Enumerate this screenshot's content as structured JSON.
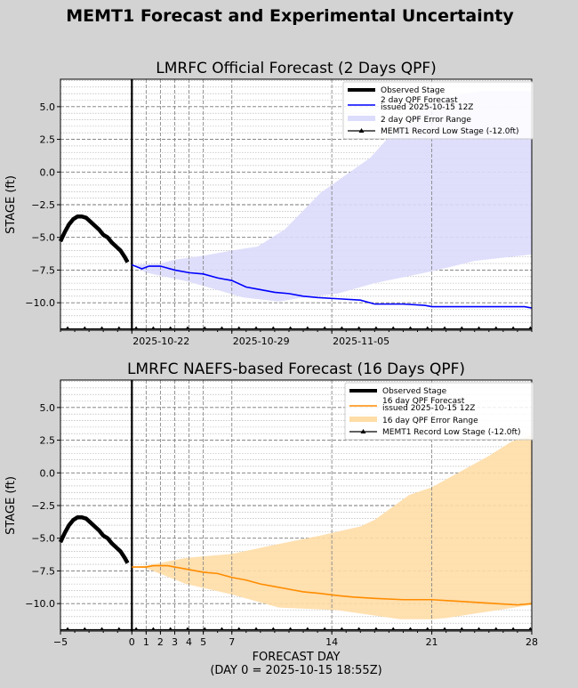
{
  "figure_title": "MEMT1 Forecast and Experimental Uncertainty",
  "colors": {
    "background": "#d3d3d3",
    "observed": "#000000",
    "official_line": "#0000ff",
    "official_band": "#dcdcfc",
    "naefs_line": "#ff8c00",
    "naefs_band": "#ffdda6"
  },
  "chart_data": [
    {
      "type": "line",
      "title": "LMRFC Official Forecast (2 Days QPF)",
      "ylabel": "STAGE (ft)",
      "xlabel": "",
      "xlim": [
        -5,
        28
      ],
      "ylim": [
        -12.1,
        7.1
      ],
      "yticks": [
        5.0,
        2.5,
        0.0,
        -2.5,
        -5.0,
        -7.5,
        -10.0
      ],
      "ytick_labels": [
        "5.0",
        "2.5",
        "0.0",
        "−2.5",
        "−5.0",
        "−7.5",
        "−10.0"
      ],
      "xtick_labels": [
        {
          "day": 0,
          "label": "2025-10-22"
        },
        {
          "day": 7,
          "label": "2025-10-29"
        },
        {
          "day": 14,
          "label": "2025-11-05"
        }
      ],
      "vlines": [
        1,
        2,
        3,
        4,
        5,
        7,
        14,
        21
      ],
      "grid": true,
      "legend_position": "top-right",
      "legend": [
        "Observed Stage",
        "2 day QPF Forecast",
        "issued 2025-10-15 12Z",
        "2 day QPF Error Range",
        "MEMT1 Record Low Stage (-12.0ft)"
      ],
      "record_low": -12.0,
      "observed": {
        "x": [
          -5,
          -4.7,
          -4.4,
          -4.1,
          -3.8,
          -3.5,
          -3.2,
          -2.9,
          -2.6,
          -2.3,
          -2.0,
          -1.7,
          -1.4,
          -1.1,
          -0.8,
          -0.5,
          -0.3
        ],
        "y": [
          -5.3,
          -4.6,
          -4.0,
          -3.6,
          -3.4,
          -3.4,
          -3.5,
          -3.8,
          -4.1,
          -4.4,
          -4.8,
          -5.0,
          -5.4,
          -5.7,
          -6.0,
          -6.5,
          -6.9
        ]
      },
      "forecast": {
        "x": [
          0,
          0.7,
          1.2,
          2,
          3,
          4,
          5,
          6,
          7,
          8,
          9,
          10,
          11,
          12,
          13,
          14.5,
          16,
          17,
          19,
          20.5,
          21,
          27.5,
          28
        ],
        "y": [
          -7.1,
          -7.4,
          -7.2,
          -7.2,
          -7.5,
          -7.7,
          -7.8,
          -8.1,
          -8.3,
          -8.8,
          -9.0,
          -9.2,
          -9.3,
          -9.5,
          -9.6,
          -9.7,
          -9.8,
          -10.1,
          -10.1,
          -10.2,
          -10.3,
          -10.3,
          -10.4
        ]
      },
      "band_upper": {
        "x": [
          0,
          2,
          3,
          5,
          7,
          8.8,
          10.7,
          13.2,
          16.7,
          18.5,
          21.2,
          24.3,
          28
        ],
        "y": [
          -7.1,
          -7.0,
          -6.7,
          -6.4,
          -6.0,
          -5.7,
          -4.4,
          -1.6,
          1.1,
          3.3,
          5.5,
          6.2,
          6.2
        ]
      },
      "band_lower": {
        "x": [
          0,
          1,
          4,
          7.8,
          10.3,
          12,
          14.4,
          17,
          21,
          24,
          28
        ],
        "y": [
          -7.1,
          -7.7,
          -8.4,
          -9.6,
          -9.9,
          -9.6,
          -9.3,
          -8.5,
          -7.6,
          -6.8,
          -6.3
        ]
      }
    },
    {
      "type": "line",
      "title": "LMRFC NAEFS-based Forecast (16 Days QPF)",
      "ylabel": "STAGE (ft)",
      "xlabel": "FORECAST DAY",
      "xlabel2": "(DAY 0 = 2025-10-15 18:55Z)",
      "xlim": [
        -5,
        28
      ],
      "ylim": [
        -12.1,
        7.1
      ],
      "yticks": [
        5.0,
        2.5,
        0.0,
        -2.5,
        -5.0,
        -7.5,
        -10.0
      ],
      "ytick_labels": [
        "5.0",
        "2.5",
        "0.0",
        "−2.5",
        "−5.0",
        "−7.5",
        "−10.0"
      ],
      "xtick_labels": [
        {
          "day": -5,
          "label": "−5"
        },
        {
          "day": 0,
          "label": "0"
        },
        {
          "day": 1,
          "label": "1"
        },
        {
          "day": 2,
          "label": "2"
        },
        {
          "day": 3,
          "label": "3"
        },
        {
          "day": 4,
          "label": "4"
        },
        {
          "day": 5,
          "label": "5"
        },
        {
          "day": 7,
          "label": "7"
        },
        {
          "day": 14,
          "label": "14"
        },
        {
          "day": 21,
          "label": "21"
        },
        {
          "day": 28,
          "label": "28"
        }
      ],
      "vlines": [
        1,
        2,
        3,
        4,
        5,
        7,
        14,
        21
      ],
      "grid": true,
      "legend_position": "top-right",
      "legend": [
        "Observed Stage",
        "16 day QPF Forecast",
        "issued 2025-10-15 12Z",
        "16 day QPF Error Range",
        "MEMT1 Record Low Stage (-12.0ft)"
      ],
      "record_low": -12.0,
      "observed": {
        "x": [
          -5,
          -4.7,
          -4.4,
          -4.1,
          -3.8,
          -3.5,
          -3.2,
          -2.9,
          -2.6,
          -2.3,
          -2.0,
          -1.7,
          -1.4,
          -1.1,
          -0.8,
          -0.5,
          -0.3
        ],
        "y": [
          -5.3,
          -4.6,
          -4.0,
          -3.6,
          -3.4,
          -3.4,
          -3.5,
          -3.8,
          -4.1,
          -4.4,
          -4.8,
          -5.0,
          -5.4,
          -5.7,
          -6.0,
          -6.5,
          -6.9
        ]
      },
      "forecast": {
        "x": [
          0,
          1,
          1.5,
          2.5,
          3,
          4,
          5,
          6,
          7,
          8,
          9,
          10,
          11,
          12,
          13,
          14.5,
          15.5,
          17,
          19,
          21,
          22.5,
          24,
          25.5,
          27,
          28
        ],
        "y": [
          -7.2,
          -7.2,
          -7.1,
          -7.1,
          -7.2,
          -7.4,
          -7.6,
          -7.7,
          -8.0,
          -8.2,
          -8.5,
          -8.7,
          -8.9,
          -9.1,
          -9.2,
          -9.4,
          -9.5,
          -9.6,
          -9.7,
          -9.7,
          -9.8,
          -9.9,
          -10.0,
          -10.1,
          -10.0
        ]
      },
      "band_upper": {
        "x": [
          0,
          1,
          3.8,
          7,
          10,
          13.2,
          16,
          17,
          19.4,
          21,
          23,
          25,
          26.6,
          28
        ],
        "y": [
          -7.2,
          -7.1,
          -6.5,
          -6.2,
          -5.5,
          -4.8,
          -4.1,
          -3.6,
          -1.7,
          -1.1,
          0.1,
          1.3,
          2.4,
          2.9
        ]
      },
      "band_lower": {
        "x": [
          0,
          1,
          3.8,
          7,
          10.3,
          14.4,
          18.8,
          21,
          22,
          25,
          28
        ],
        "y": [
          -7.2,
          -7.3,
          -8.5,
          -9.3,
          -10.3,
          -10.5,
          -11.2,
          -11.2,
          -11.1,
          -10.6,
          -10.1
        ]
      }
    }
  ]
}
